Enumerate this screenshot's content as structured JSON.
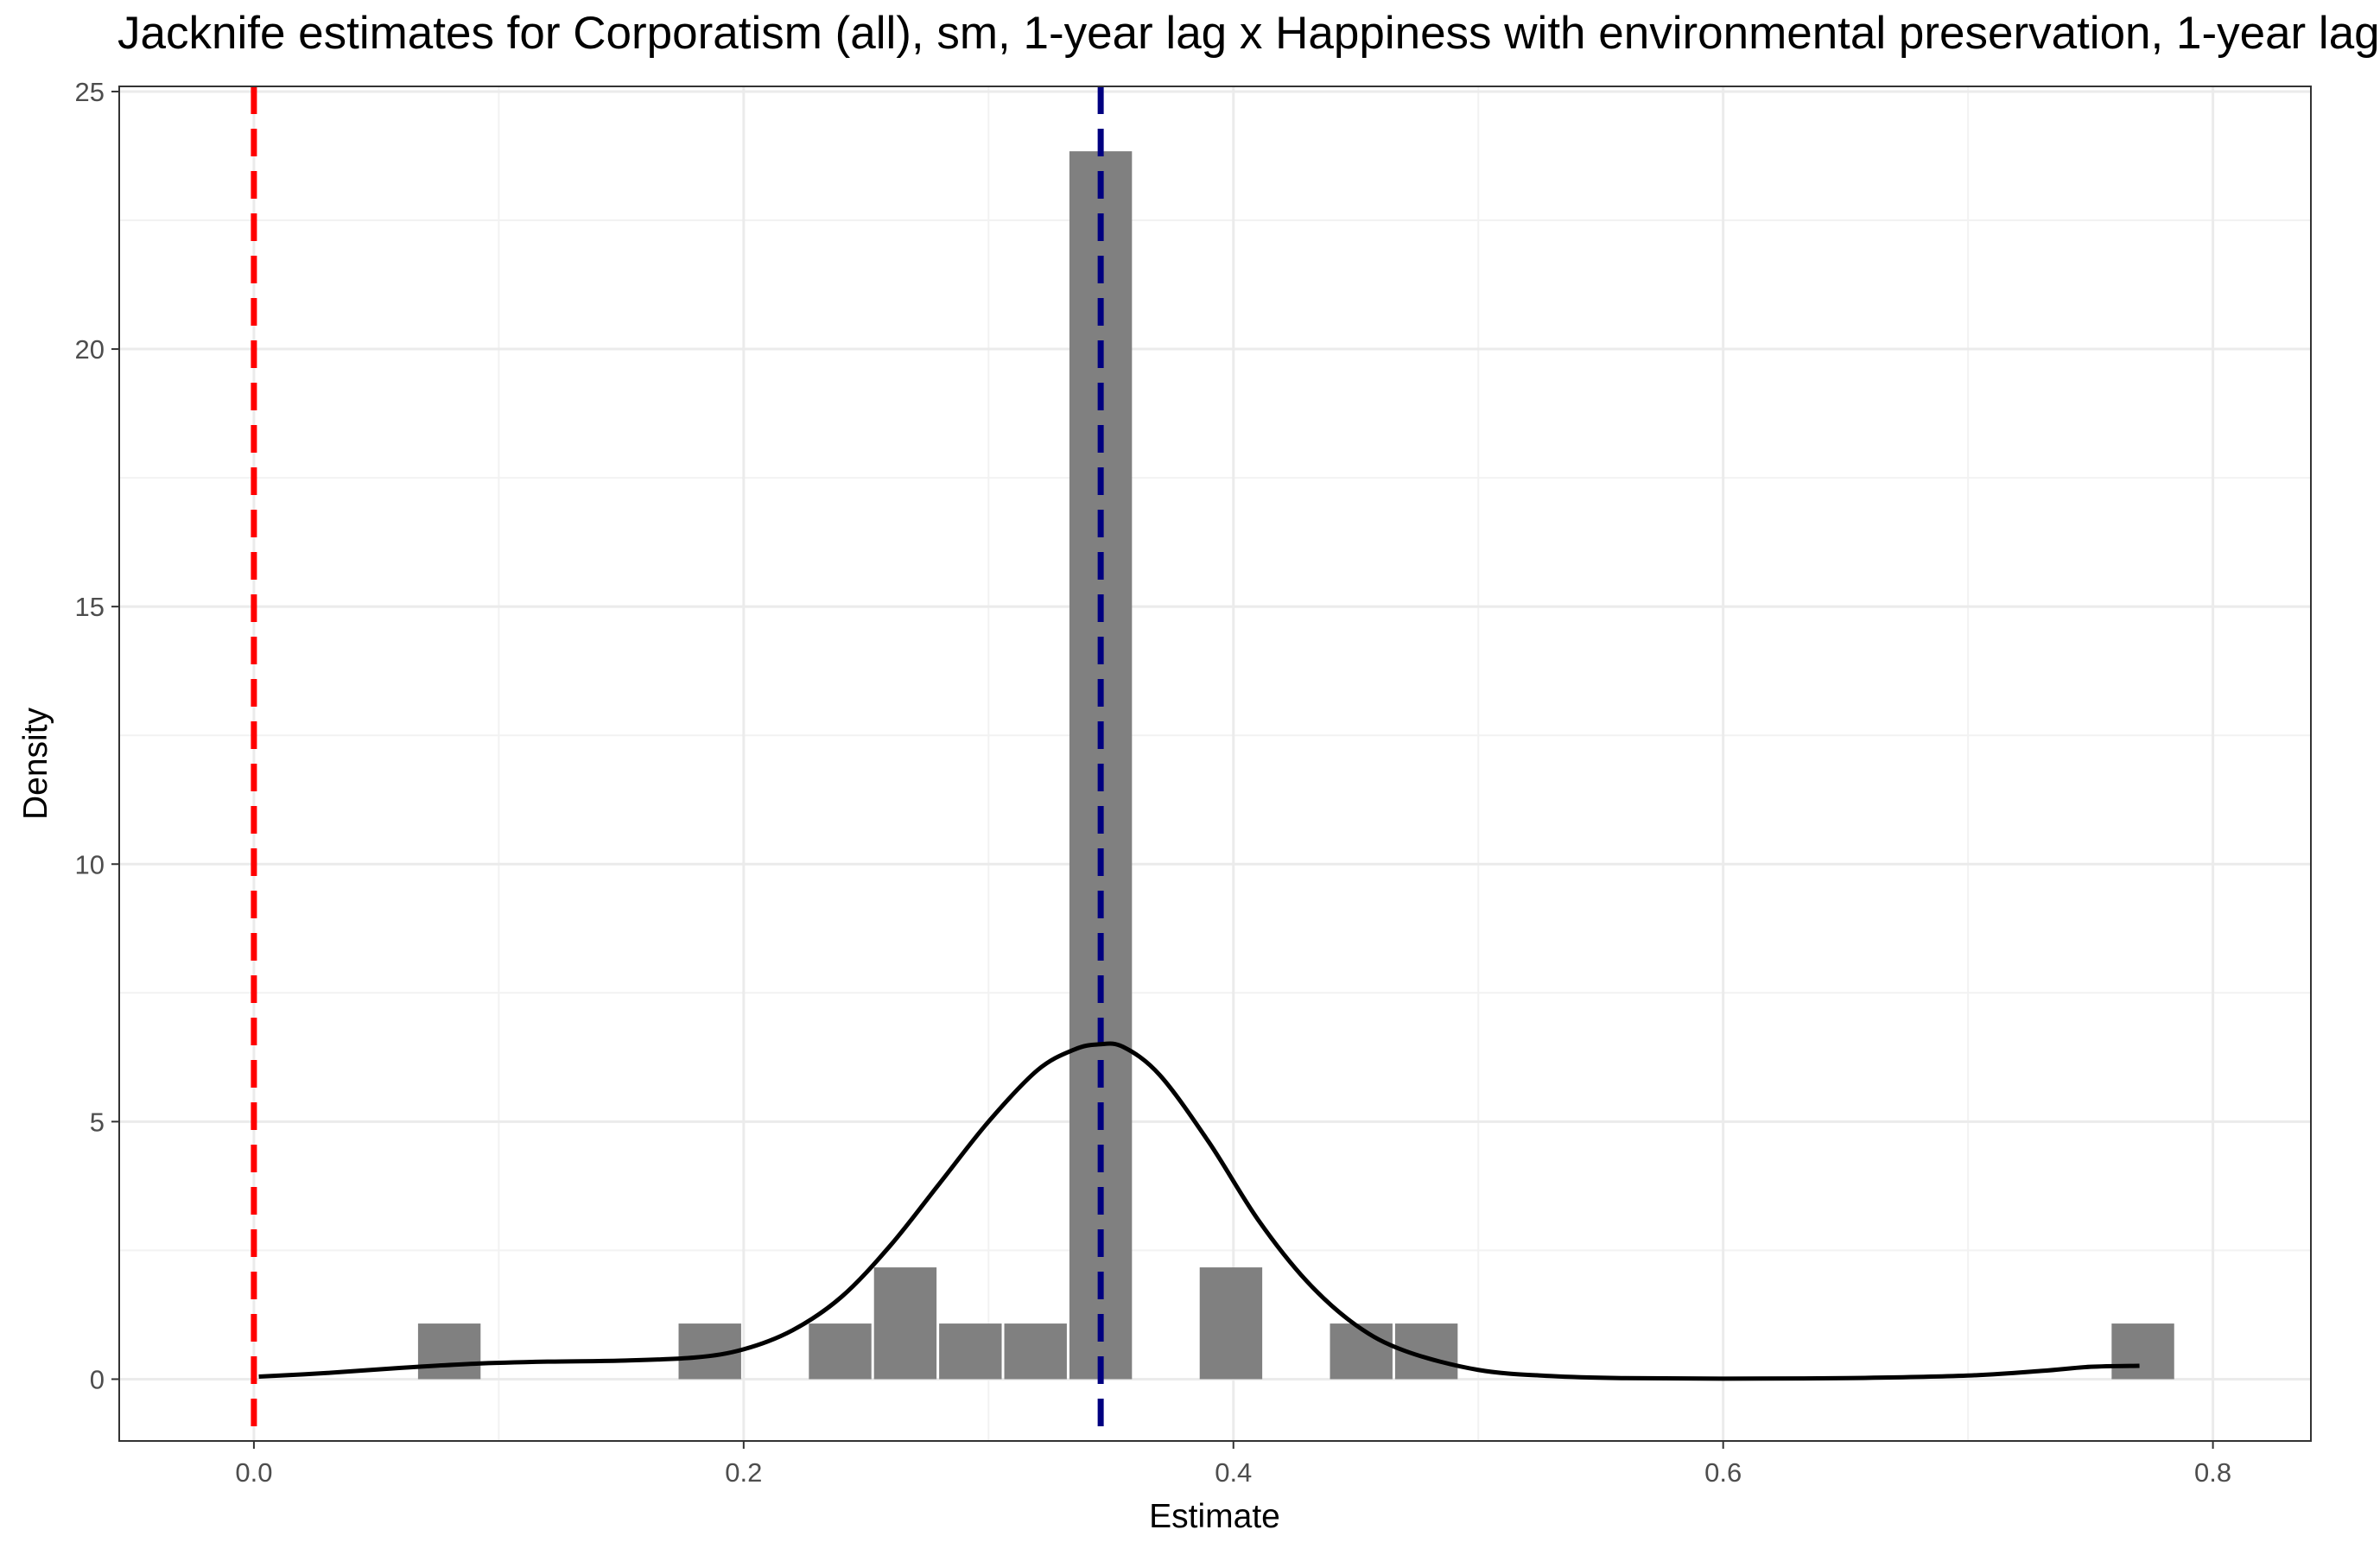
{
  "chart_data": {
    "type": "histogram",
    "title": "Jacknife estimates for Corporatism (all), sm, 1-year lag x Happiness with environmental preservation, 1-year lag",
    "xlabel": "Estimate",
    "ylabel": "Density",
    "xlim": [
      -0.055,
      0.84
    ],
    "ylim": [
      -1.2,
      25.1
    ],
    "x_ticks": [
      "0.0",
      "0.2",
      "0.4",
      "0.6",
      "0.8"
    ],
    "x_tick_values": [
      0.0,
      0.2,
      0.4,
      0.6,
      0.8
    ],
    "y_ticks": [
      "0",
      "5",
      "10",
      "15",
      "20",
      "25"
    ],
    "y_tick_values": [
      0,
      5,
      10,
      15,
      20,
      25
    ],
    "bin_width": 0.0266,
    "bins": [
      {
        "x": 0.0798,
        "density": 1.08
      },
      {
        "x": 0.1862,
        "density": 1.08
      },
      {
        "x": 0.2394,
        "density": 1.08
      },
      {
        "x": 0.266,
        "density": 2.17
      },
      {
        "x": 0.2926,
        "density": 1.08
      },
      {
        "x": 0.3192,
        "density": 1.08
      },
      {
        "x": 0.3458,
        "density": 23.84
      },
      {
        "x": 0.399,
        "density": 2.17
      },
      {
        "x": 0.4522,
        "density": 1.08
      },
      {
        "x": 0.4788,
        "density": 1.08
      },
      {
        "x": 0.7714,
        "density": 1.08
      }
    ],
    "density_curve": {
      "x": [
        0.002,
        0.03,
        0.06,
        0.09,
        0.12,
        0.15,
        0.18,
        0.2,
        0.22,
        0.24,
        0.26,
        0.28,
        0.3,
        0.32,
        0.335,
        0.345,
        0.355,
        0.37,
        0.39,
        0.41,
        0.43,
        0.45,
        0.47,
        0.5,
        0.53,
        0.56,
        0.6,
        0.65,
        0.7,
        0.73,
        0.75,
        0.77
      ],
      "y": [
        0.05,
        0.12,
        0.22,
        0.3,
        0.34,
        0.36,
        0.42,
        0.58,
        0.95,
        1.6,
        2.6,
        3.8,
        5.0,
        6.0,
        6.4,
        6.5,
        6.45,
        5.9,
        4.6,
        3.1,
        1.9,
        1.05,
        0.55,
        0.18,
        0.06,
        0.02,
        0.01,
        0.02,
        0.07,
        0.16,
        0.24,
        0.26
      ]
    },
    "reference_lines": [
      {
        "x": 0.0,
        "color": "#ff0000",
        "style": "dashed"
      },
      {
        "x": 0.3458,
        "color": "#000080",
        "style": "dashed"
      }
    ],
    "bar_color": "#808080",
    "curve_color": "#000000",
    "grid": true,
    "legend": "none"
  }
}
